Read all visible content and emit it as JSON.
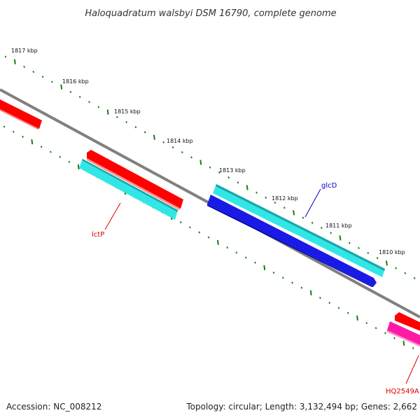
{
  "title": "Haloquadratum walsbyi DSM 16790, complete genome",
  "footer": {
    "accession": "Accession: NC_008212",
    "topology": "Topology: circular; Length: 3,132,494 bp; Genes: 2,662"
  },
  "colors": {
    "backbone": "#808080",
    "tick": "#1a7a1a",
    "red_gene": "#ff0000",
    "cyan_gene": "#33e6e6",
    "blue_gene": "#1a1ae6",
    "magenta_gene": "#ff1aa6",
    "label_red": "#dd0000",
    "label_blue": "#0000cc"
  },
  "kbp_labels": [
    "1817 kbp",
    "1816 kbp",
    "1815 kbp",
    "1814 kbp",
    "1813 kbp",
    "1812 kbp",
    "1811 kbp",
    "1810 kbp"
  ],
  "genes": {
    "lctP": {
      "label": "lctP",
      "strand": "minus",
      "type": "cds"
    },
    "glcD": {
      "label": "glcD",
      "strand": "minus",
      "type": "gene"
    },
    "HQ2549A": {
      "label": "HQ2549A",
      "strand": "plus",
      "type": "rna"
    }
  }
}
